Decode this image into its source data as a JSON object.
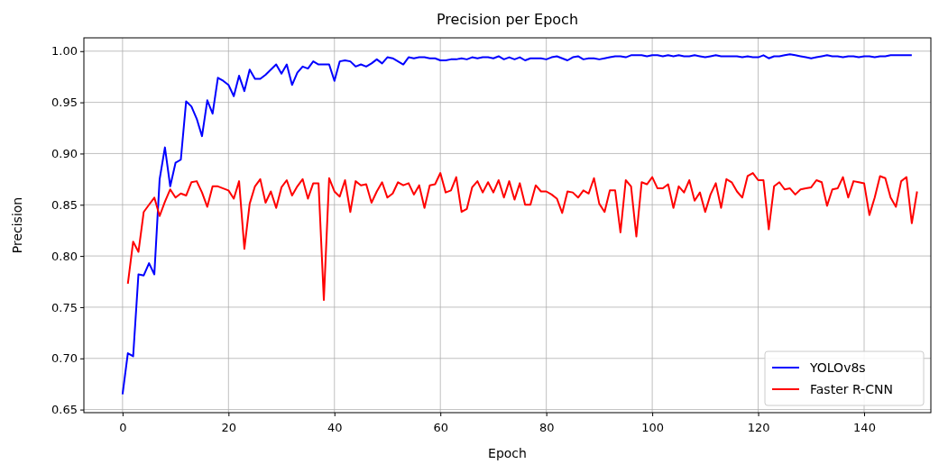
{
  "chart_data": {
    "type": "line",
    "title": "Precision per Epoch",
    "xlabel": "Epoch",
    "ylabel": "Precision",
    "xlim": [
      -7.3,
      152.6
    ],
    "ylim": [
      0.647,
      1.013
    ],
    "xticks": [
      0,
      20,
      40,
      60,
      80,
      100,
      120,
      140
    ],
    "yticks": [
      {
        "value": 0.65,
        "label": "0.65"
      },
      {
        "value": 0.7,
        "label": "0.70"
      },
      {
        "value": 0.75,
        "label": "0.75"
      },
      {
        "value": 0.8,
        "label": "0.80"
      },
      {
        "value": 0.85,
        "label": "0.85"
      },
      {
        "value": 0.9,
        "label": "0.90"
      },
      {
        "value": 0.95,
        "label": "0.95"
      },
      {
        "value": 1.0,
        "label": "1.00"
      }
    ],
    "grid": true,
    "legend": "bottom right",
    "line_style": "solid",
    "marker": "none",
    "series": [
      {
        "name": "YOLOv8s",
        "color": "#0000ff",
        "x": [
          0,
          1,
          2,
          3,
          4,
          5,
          6,
          7,
          8,
          9,
          10,
          11,
          12,
          13,
          14,
          15,
          16,
          17,
          18,
          19,
          20,
          21,
          22,
          23,
          24,
          25,
          26,
          27,
          28,
          29,
          30,
          31,
          32,
          33,
          34,
          35,
          36,
          37,
          38,
          39,
          40,
          41,
          42,
          43,
          44,
          45,
          46,
          47,
          48,
          49,
          50,
          51,
          52,
          53,
          54,
          55,
          56,
          57,
          58,
          59,
          60,
          61,
          62,
          63,
          64,
          65,
          66,
          67,
          68,
          69,
          70,
          71,
          72,
          73,
          74,
          75,
          76,
          77,
          78,
          79,
          80,
          81,
          82,
          83,
          84,
          85,
          86,
          87,
          88,
          89,
          90,
          91,
          92,
          93,
          94,
          95,
          96,
          97,
          98,
          99,
          100,
          101,
          102,
          103,
          104,
          105,
          106,
          107,
          108,
          109,
          110,
          111,
          112,
          113,
          114,
          115,
          116,
          117,
          118,
          119,
          120,
          121,
          122,
          123,
          124,
          125,
          126,
          127,
          128,
          129,
          130,
          131,
          132,
          133,
          134,
          135,
          136,
          137,
          138,
          139,
          140,
          141,
          142,
          143,
          144,
          145,
          146,
          147,
          148,
          149
        ],
        "values": [
          0.665,
          0.705,
          0.702,
          0.782,
          0.781,
          0.793,
          0.782,
          0.875,
          0.906,
          0.868,
          0.891,
          0.894,
          0.951,
          0.946,
          0.934,
          0.917,
          0.952,
          0.939,
          0.974,
          0.971,
          0.967,
          0.956,
          0.976,
          0.961,
          0.982,
          0.973,
          0.973,
          0.977,
          0.982,
          0.987,
          0.978,
          0.987,
          0.967,
          0.979,
          0.985,
          0.983,
          0.99,
          0.987,
          0.987,
          0.987,
          0.971,
          0.99,
          0.991,
          0.99,
          0.985,
          0.987,
          0.985,
          0.988,
          0.992,
          0.988,
          0.994,
          0.993,
          0.99,
          0.987,
          0.994,
          0.993,
          0.994,
          0.994,
          0.993,
          0.993,
          0.991,
          0.991,
          0.992,
          0.992,
          0.993,
          0.992,
          0.994,
          0.993,
          0.994,
          0.994,
          0.993,
          0.995,
          0.992,
          0.994,
          0.992,
          0.994,
          0.991,
          0.993,
          0.993,
          0.993,
          0.992,
          0.994,
          0.995,
          0.993,
          0.991,
          0.994,
          0.995,
          0.992,
          0.993,
          0.993,
          0.992,
          0.993,
          0.994,
          0.995,
          0.995,
          0.994,
          0.996,
          0.996,
          0.996,
          0.995,
          0.996,
          0.996,
          0.995,
          0.996,
          0.995,
          0.996,
          0.995,
          0.995,
          0.996,
          0.995,
          0.994,
          0.995,
          0.996,
          0.995,
          0.995,
          0.995,
          0.995,
          0.994,
          0.995,
          0.994,
          0.994,
          0.996,
          0.993,
          0.995,
          0.995,
          0.996,
          0.997,
          0.996,
          0.995,
          0.994,
          0.993,
          0.994,
          0.995,
          0.996,
          0.995,
          0.995,
          0.994,
          0.995,
          0.995,
          0.994,
          0.995,
          0.995,
          0.994,
          0.995,
          0.995,
          0.996,
          0.996,
          0.996,
          0.996,
          0.996
        ]
      },
      {
        "name": "Faster R-CNN",
        "color": "#ff0000",
        "x": [
          1,
          2,
          3,
          4,
          5,
          6,
          7,
          8,
          9,
          10,
          11,
          12,
          13,
          14,
          15,
          16,
          17,
          18,
          19,
          20,
          21,
          22,
          23,
          24,
          25,
          26,
          27,
          28,
          29,
          30,
          31,
          32,
          33,
          34,
          35,
          36,
          37,
          38,
          39,
          40,
          41,
          42,
          43,
          44,
          45,
          46,
          47,
          48,
          49,
          50,
          51,
          52,
          53,
          54,
          55,
          56,
          57,
          58,
          59,
          60,
          61,
          62,
          63,
          64,
          65,
          66,
          67,
          68,
          69,
          70,
          71,
          72,
          73,
          74,
          75,
          76,
          77,
          78,
          79,
          80,
          81,
          82,
          83,
          84,
          85,
          86,
          87,
          88,
          89,
          90,
          91,
          92,
          93,
          94,
          95,
          96,
          97,
          98,
          99,
          100,
          101,
          102,
          103,
          104,
          105,
          106,
          107,
          108,
          109,
          110,
          111,
          112,
          113,
          114,
          115,
          116,
          117,
          118,
          119,
          120,
          121,
          122,
          123,
          124,
          125,
          126,
          127,
          128,
          129,
          130,
          131,
          132,
          133,
          134,
          135,
          136,
          137,
          138,
          139,
          140,
          141,
          142,
          143,
          144,
          145,
          146,
          147,
          148,
          149,
          150
        ],
        "values": [
          0.773,
          0.814,
          0.804,
          0.843,
          0.85,
          0.857,
          0.839,
          0.853,
          0.865,
          0.857,
          0.861,
          0.859,
          0.872,
          0.873,
          0.862,
          0.848,
          0.868,
          0.868,
          0.866,
          0.864,
          0.856,
          0.873,
          0.807,
          0.851,
          0.868,
          0.875,
          0.852,
          0.863,
          0.847,
          0.867,
          0.874,
          0.859,
          0.868,
          0.875,
          0.856,
          0.871,
          0.871,
          0.757,
          0.876,
          0.863,
          0.858,
          0.874,
          0.843,
          0.873,
          0.869,
          0.87,
          0.852,
          0.863,
          0.872,
          0.857,
          0.861,
          0.872,
          0.869,
          0.871,
          0.86,
          0.869,
          0.847,
          0.869,
          0.87,
          0.881,
          0.862,
          0.864,
          0.877,
          0.843,
          0.846,
          0.867,
          0.873,
          0.862,
          0.872,
          0.862,
          0.874,
          0.857,
          0.873,
          0.855,
          0.871,
          0.85,
          0.85,
          0.869,
          0.863,
          0.863,
          0.86,
          0.856,
          0.842,
          0.863,
          0.862,
          0.857,
          0.864,
          0.861,
          0.876,
          0.851,
          0.843,
          0.864,
          0.864,
          0.823,
          0.874,
          0.868,
          0.819,
          0.872,
          0.87,
          0.877,
          0.866,
          0.866,
          0.87,
          0.847,
          0.868,
          0.862,
          0.874,
          0.854,
          0.862,
          0.843,
          0.86,
          0.871,
          0.847,
          0.875,
          0.872,
          0.863,
          0.857,
          0.878,
          0.881,
          0.874,
          0.874,
          0.826,
          0.868,
          0.872,
          0.865,
          0.866,
          0.86,
          0.865,
          0.866,
          0.867,
          0.874,
          0.872,
          0.849,
          0.865,
          0.866,
          0.877,
          0.857,
          0.873,
          0.872,
          0.871,
          0.84,
          0.857,
          0.878,
          0.876,
          0.857,
          0.848,
          0.873,
          0.877,
          0.832,
          0.863
        ]
      }
    ]
  }
}
